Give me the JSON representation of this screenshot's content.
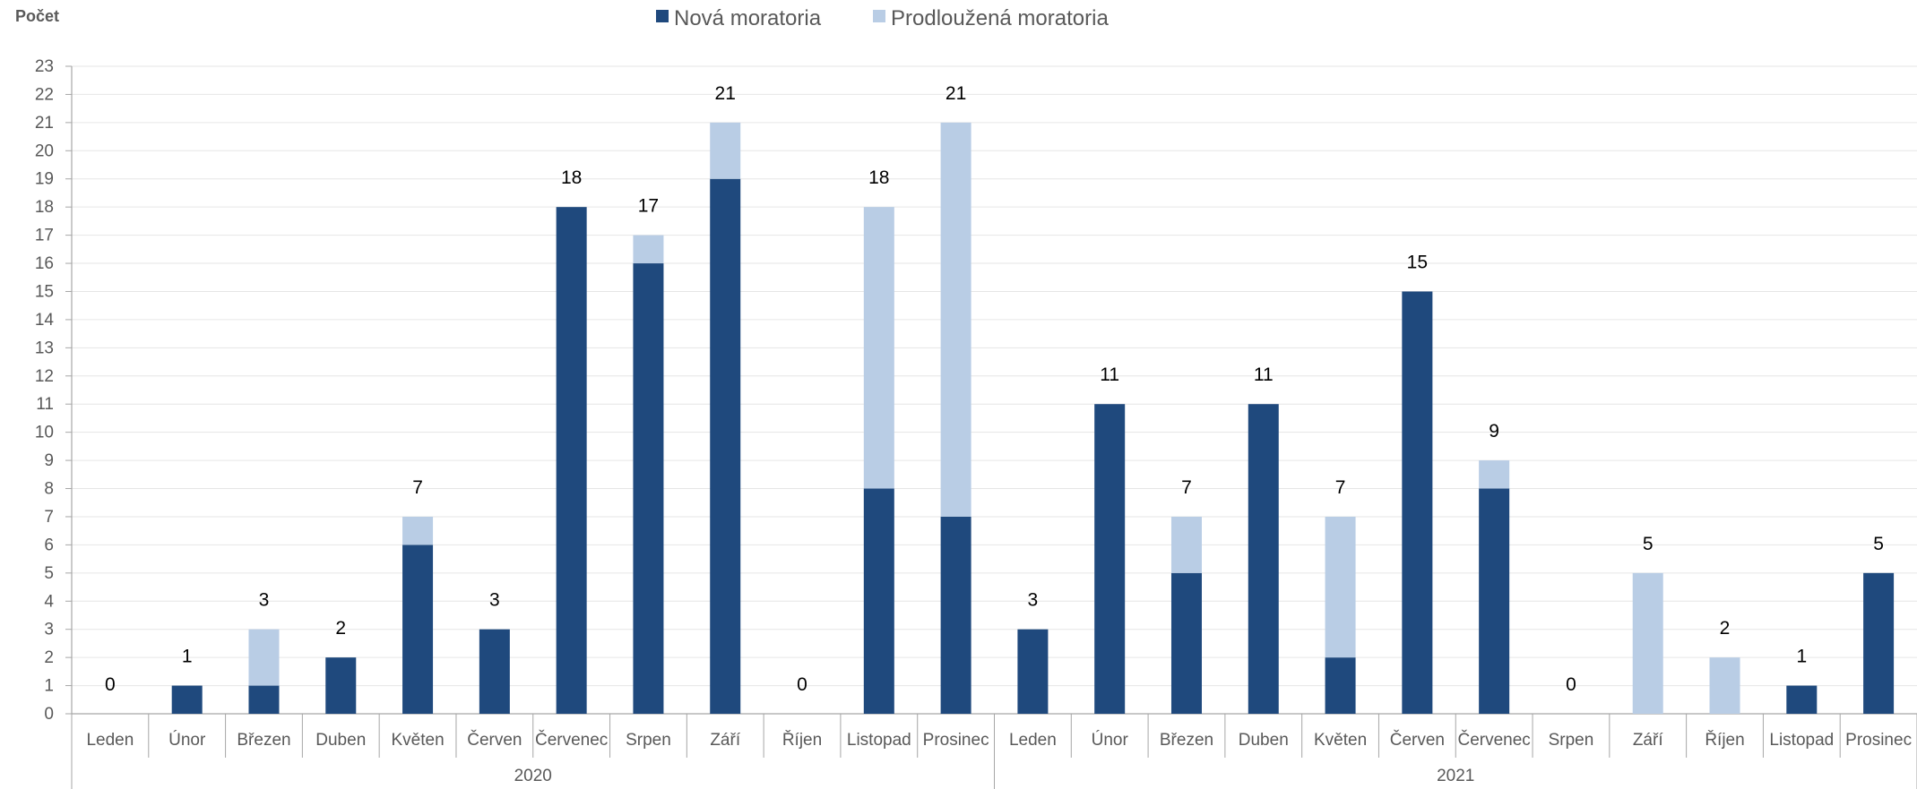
{
  "chart_data": {
    "type": "bar",
    "stacked": true,
    "ylabel": "Počet",
    "ylim": [
      0,
      23
    ],
    "yticks": [
      0,
      1,
      2,
      3,
      4,
      5,
      6,
      7,
      8,
      9,
      10,
      11,
      12,
      13,
      14,
      15,
      16,
      17,
      18,
      19,
      20,
      21,
      22,
      23
    ],
    "grid": true,
    "legend_position": "top",
    "colors": {
      "nova": "#1f497d",
      "prodlouzena": "#b9cde5"
    },
    "years": [
      {
        "label": "2020",
        "start": 0,
        "end": 11
      },
      {
        "label": "2021",
        "start": 12,
        "end": 23
      }
    ],
    "categories": [
      "Leden",
      "Únor",
      "Březen",
      "Duben",
      "Květen",
      "Červen",
      "Červenec",
      "Srpen",
      "Září",
      "Říjen",
      "Listopad",
      "Prosinec",
      "Leden",
      "Únor",
      "Březen",
      "Duben",
      "Květen",
      "Červen",
      "Červenec",
      "Srpen",
      "Září",
      "Říjen",
      "Listopad",
      "Prosinec"
    ],
    "series": [
      {
        "name": "Nová moratoria",
        "values": [
          0,
          1,
          1,
          2,
          6,
          3,
          18,
          16,
          19,
          0,
          8,
          7,
          3,
          11,
          5,
          11,
          2,
          15,
          8,
          0,
          0,
          0,
          1,
          5
        ]
      },
      {
        "name": "Prodloužená moratoria",
        "values": [
          0,
          0,
          2,
          0,
          1,
          0,
          0,
          1,
          2,
          0,
          10,
          14,
          0,
          0,
          2,
          0,
          5,
          0,
          1,
          0,
          5,
          2,
          0,
          0
        ]
      }
    ],
    "totals": [
      0,
      1,
      3,
      2,
      7,
      3,
      18,
      17,
      21,
      0,
      18,
      21,
      3,
      11,
      7,
      11,
      7,
      15,
      9,
      0,
      5,
      2,
      1,
      5
    ]
  }
}
